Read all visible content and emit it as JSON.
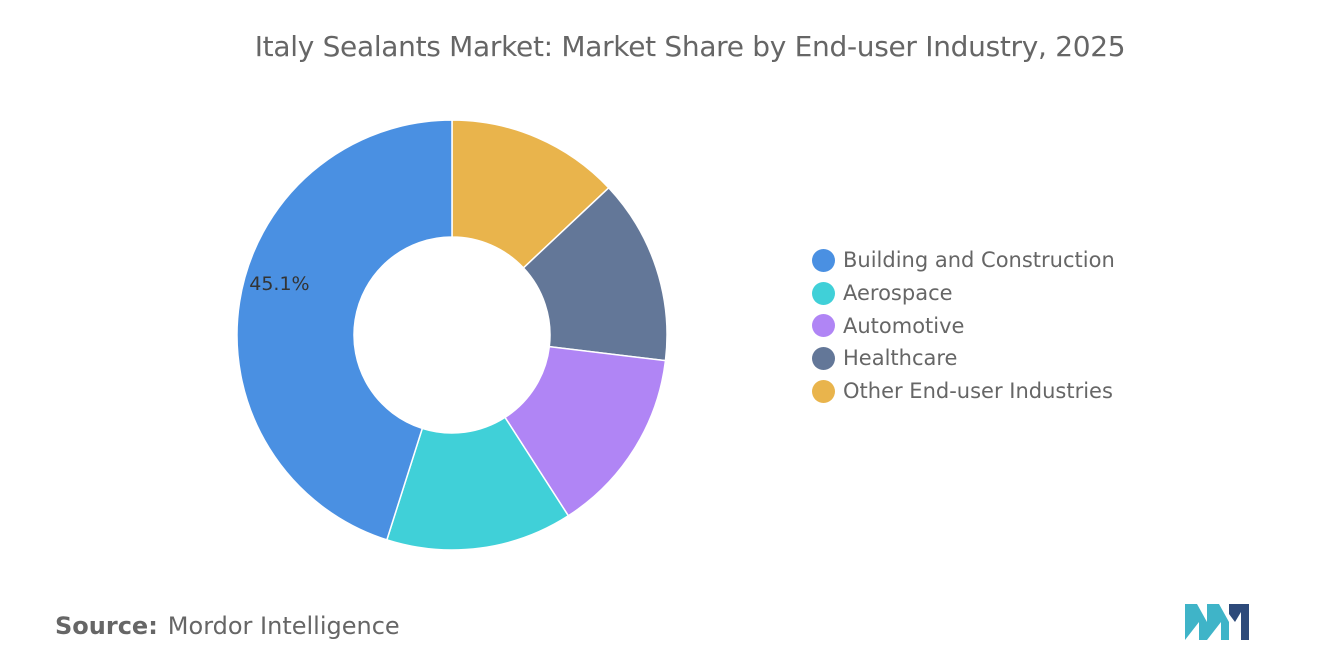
{
  "title": "Italy Sealants Market: Market Share by End-user Industry, 2025",
  "source": {
    "label": "Source:",
    "value": "Mordor Intelligence"
  },
  "colors": {
    "logo_dark": "#2d4a7a",
    "logo_light": "#3fb4c8"
  },
  "chart_data": {
    "type": "pie",
    "donut": true,
    "title": "Italy Sealants Market: Market Share by End-user Industry, 2025",
    "legend_position": "right",
    "slices": [
      {
        "name": "Building and Construction",
        "value": 45.1,
        "label": "45.1%",
        "color": "#4a90e2"
      },
      {
        "name": "Aerospace",
        "value": 14.0,
        "label": "",
        "color": "#40d0d8"
      },
      {
        "name": "Automotive",
        "value": 14.0,
        "label": "",
        "color": "#b085f5"
      },
      {
        "name": "Healthcare",
        "value": 13.9,
        "label": "",
        "color": "#637798"
      },
      {
        "name": "Other End-user Industries",
        "value": 13.0,
        "label": "",
        "color": "#e9b44c"
      }
    ]
  }
}
